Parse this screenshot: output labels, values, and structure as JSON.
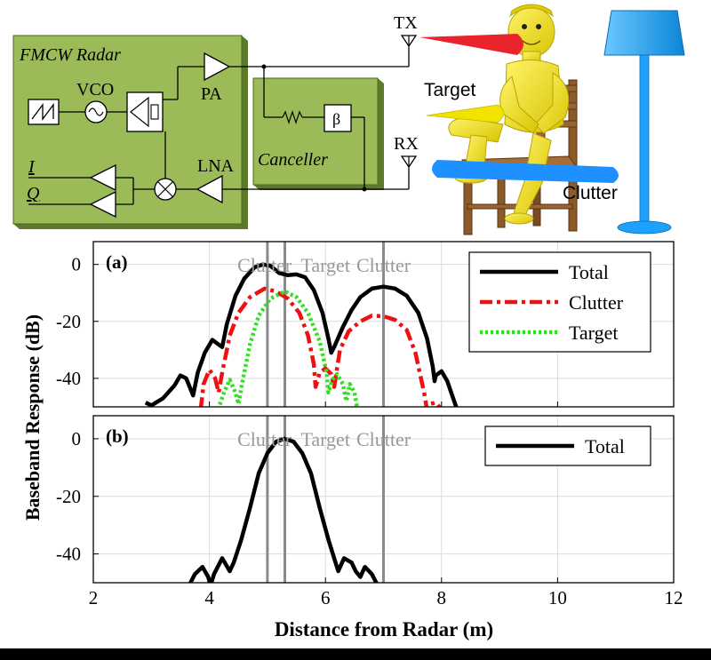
{
  "diagram": {
    "radar_title": "FMCW Radar",
    "vco": "VCO",
    "pa": "PA",
    "lna": "LNA",
    "i": "I",
    "q": "Q",
    "canceller": "Canceller",
    "beta": "β",
    "tx": "TX",
    "rx": "RX",
    "target": "Target",
    "clutter": "Clutter",
    "colors": {
      "box_fill": "#9bbb59",
      "person": "#f5e900",
      "chair": "#8b5a2b",
      "lamp": "#1ea0ff",
      "tx_beam": "#e8242c",
      "clutter_beam": "#1e90ff"
    }
  },
  "chart_data": [
    {
      "panel": "(a)",
      "type": "line",
      "xlim": [
        2,
        12
      ],
      "ylim": [
        -50,
        8
      ],
      "yticks": [
        0,
        -20,
        -40
      ],
      "grid": true,
      "legend_position": "top-right",
      "region_labels": [
        {
          "text": "Clutter",
          "x": 4.95
        },
        {
          "text": "Target",
          "x": 6.0
        },
        {
          "text": "Clutter",
          "x": 7.0
        }
      ],
      "vlines": [
        5.0,
        5.3,
        7.0
      ],
      "series": [
        {
          "name": "Total",
          "color": "#000000",
          "dash": "solid",
          "points": [
            [
              2.9,
              -48.5
            ],
            [
              3.0,
              -49.5
            ],
            [
              3.2,
              -47
            ],
            [
              3.4,
              -42.5
            ],
            [
              3.5,
              -39
            ],
            [
              3.6,
              -40
            ],
            [
              3.72,
              -46
            ],
            [
              3.8,
              -38
            ],
            [
              3.92,
              -31
            ],
            [
              4.05,
              -26.5
            ],
            [
              4.15,
              -28
            ],
            [
              4.22,
              -29
            ],
            [
              4.3,
              -21
            ],
            [
              4.45,
              -11
            ],
            [
              4.6,
              -5
            ],
            [
              4.78,
              -1
            ],
            [
              4.92,
              0
            ],
            [
              5.05,
              -0.5
            ],
            [
              5.2,
              -3
            ],
            [
              5.35,
              -3.8
            ],
            [
              5.5,
              -3.5
            ],
            [
              5.65,
              -4.5
            ],
            [
              5.8,
              -9
            ],
            [
              5.95,
              -17
            ],
            [
              6.05,
              -26
            ],
            [
              6.1,
              -31
            ],
            [
              6.15,
              -29
            ],
            [
              6.3,
              -22
            ],
            [
              6.45,
              -16
            ],
            [
              6.6,
              -11.5
            ],
            [
              6.8,
              -8.5
            ],
            [
              7.0,
              -7.8
            ],
            [
              7.2,
              -8.5
            ],
            [
              7.4,
              -11
            ],
            [
              7.6,
              -17
            ],
            [
              7.75,
              -26
            ],
            [
              7.85,
              -36
            ],
            [
              7.88,
              -41
            ],
            [
              7.9,
              -39
            ],
            [
              8.0,
              -37.5
            ],
            [
              8.1,
              -41
            ],
            [
              8.2,
              -47
            ],
            [
              8.27,
              -51
            ]
          ]
        },
        {
          "name": "Clutter",
          "color": "#ee1111",
          "dash": "dashdot",
          "points": [
            [
              3.85,
              -51
            ],
            [
              3.9,
              -42
            ],
            [
              4.0,
              -37
            ],
            [
              4.1,
              -40
            ],
            [
              4.16,
              -45
            ],
            [
              4.22,
              -38
            ],
            [
              4.35,
              -25
            ],
            [
              4.5,
              -17
            ],
            [
              4.7,
              -11.5
            ],
            [
              4.95,
              -8.5
            ],
            [
              5.15,
              -9.5
            ],
            [
              5.35,
              -12
            ],
            [
              5.55,
              -17
            ],
            [
              5.7,
              -25
            ],
            [
              5.8,
              -35
            ],
            [
              5.83,
              -43
            ],
            [
              5.9,
              -38
            ],
            [
              6.0,
              -36.5
            ],
            [
              6.1,
              -38.5
            ],
            [
              6.15,
              -43
            ],
            [
              6.25,
              -30
            ],
            [
              6.4,
              -23.5
            ],
            [
              6.6,
              -20
            ],
            [
              6.8,
              -18
            ],
            [
              7.0,
              -18.2
            ],
            [
              7.2,
              -19.5
            ],
            [
              7.4,
              -23
            ],
            [
              7.55,
              -31
            ],
            [
              7.7,
              -45
            ],
            [
              7.75,
              -51
            ],
            [
              7.8,
              -49
            ],
            [
              7.9,
              -48.5
            ],
            [
              8.0,
              -51
            ]
          ]
        },
        {
          "name": "Target",
          "color": "#33dd22",
          "dash": "dotted",
          "points": [
            [
              4.15,
              -51
            ],
            [
              4.25,
              -45
            ],
            [
              4.35,
              -40.5
            ],
            [
              4.45,
              -45
            ],
            [
              4.5,
              -49
            ],
            [
              4.58,
              -40
            ],
            [
              4.7,
              -28
            ],
            [
              4.85,
              -18
            ],
            [
              5.05,
              -12
            ],
            [
              5.3,
              -9.5
            ],
            [
              5.5,
              -11.5
            ],
            [
              5.7,
              -17
            ],
            [
              5.9,
              -27
            ],
            [
              6.02,
              -38
            ],
            [
              6.05,
              -45
            ],
            [
              6.12,
              -40.5
            ],
            [
              6.2,
              -38.5
            ],
            [
              6.3,
              -42
            ],
            [
              6.36,
              -48
            ],
            [
              6.42,
              -42
            ],
            [
              6.5,
              -45
            ],
            [
              6.55,
              -51
            ]
          ]
        }
      ]
    },
    {
      "panel": "(b)",
      "type": "line",
      "xlim": [
        2,
        12
      ],
      "ylim": [
        -50,
        8
      ],
      "yticks": [
        0,
        -20,
        -40
      ],
      "grid": true,
      "legend_position": "top-right",
      "region_labels": [
        {
          "text": "Clutter",
          "x": 4.95
        },
        {
          "text": "Target",
          "x": 6.0
        },
        {
          "text": "Clutter",
          "x": 7.0
        }
      ],
      "vlines": [
        5.0,
        5.3,
        7.0
      ],
      "series": [
        {
          "name": "Total",
          "color": "#000000",
          "dash": "solid",
          "points": [
            [
              3.65,
              -51
            ],
            [
              3.75,
              -47
            ],
            [
              3.88,
              -44.5
            ],
            [
              3.98,
              -48
            ],
            [
              4.02,
              -51
            ],
            [
              4.08,
              -47
            ],
            [
              4.22,
              -41.5
            ],
            [
              4.35,
              -46
            ],
            [
              4.42,
              -43
            ],
            [
              4.55,
              -35
            ],
            [
              4.7,
              -24
            ],
            [
              4.85,
              -12
            ],
            [
              5.0,
              -5
            ],
            [
              5.15,
              -1
            ],
            [
              5.3,
              0
            ],
            [
              5.45,
              -1
            ],
            [
              5.6,
              -5
            ],
            [
              5.75,
              -12
            ],
            [
              5.9,
              -24
            ],
            [
              6.05,
              -35
            ],
            [
              6.15,
              -41.5
            ],
            [
              6.22,
              -46
            ],
            [
              6.32,
              -41.5
            ],
            [
              6.45,
              -43
            ],
            [
              6.52,
              -46
            ],
            [
              6.6,
              -48
            ],
            [
              6.68,
              -44.5
            ],
            [
              6.8,
              -47
            ],
            [
              6.9,
              -51
            ]
          ]
        }
      ]
    }
  ],
  "axes": {
    "ylabel": "Baseband Response (dB)",
    "xlabel": "Distance from Radar (m)",
    "xticks": [
      2,
      4,
      6,
      8,
      10,
      12
    ]
  }
}
